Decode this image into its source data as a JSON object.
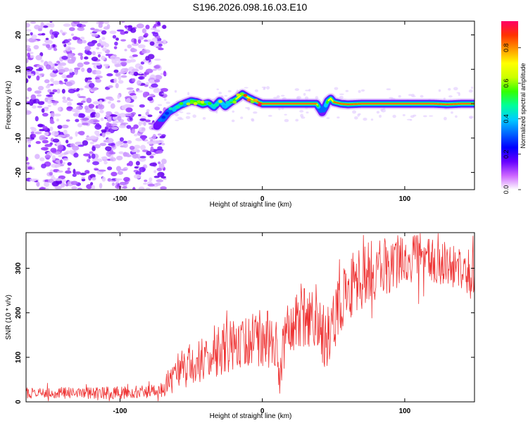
{
  "title": "S196.2026.098.16.03.E10",
  "chart_data": [
    {
      "type": "heatmap",
      "title": "S196.2026.098.16.03.E10",
      "xlabel": "Height of straight line (km)",
      "ylabel": "Frequency (Hz)",
      "xlim": [
        -166,
        149
      ],
      "ylim": [
        -25,
        24
      ],
      "xticks": [
        -100,
        0,
        100
      ],
      "yticks": [
        -20,
        -10,
        0,
        10,
        20
      ],
      "colorbar": {
        "label": "Normalized spectral amplitude",
        "range": [
          0.0,
          0.95
        ],
        "ticks": [
          0.0,
          0.2,
          0.4,
          0.6,
          0.8
        ],
        "ticklabels": [
          "0.0",
          "0.2",
          "0.4",
          "0.6",
          "0.8"
        ],
        "colors": [
          "#ffffff",
          "#cc66ff",
          "#6600ff",
          "#0000ff",
          "#0066ff",
          "#00ccff",
          "#00ff99",
          "#33ff00",
          "#ccff00",
          "#ffff00",
          "#ff9900",
          "#ff3300",
          "#ff0066"
        ]
      },
      "noise_region_x": [
        -166,
        -73
      ],
      "signal_track": {
        "x": [
          -74,
          -70,
          -66,
          -62,
          -58,
          -54,
          -50,
          -46,
          -42,
          -38,
          -34,
          -30,
          -26,
          -22,
          -18,
          -14,
          -10,
          -6,
          -2,
          0,
          10,
          20,
          30,
          38,
          40,
          42,
          44,
          46,
          48,
          50,
          55,
          60,
          70,
          80,
          90,
          100,
          110,
          120,
          130,
          140,
          149
        ],
        "f": [
          -6.5,
          -4.5,
          -2.5,
          -1.5,
          -0.5,
          0.2,
          0.8,
          0.5,
          -0.2,
          0.2,
          -1.0,
          0.8,
          -0.8,
          0.5,
          1.5,
          2.8,
          1.8,
          1.0,
          0.3,
          0.0,
          0.0,
          0.0,
          0.0,
          0.0,
          -1.2,
          -2.5,
          -1.0,
          0.8,
          1.5,
          0.5,
          0.0,
          -0.2,
          0.0,
          0.0,
          0.0,
          0.0,
          0.0,
          0.0,
          -0.2,
          0.0,
          0.0
        ],
        "amplitude": [
          0.3,
          0.35,
          0.4,
          0.45,
          0.5,
          0.55,
          0.6,
          0.62,
          0.65,
          0.55,
          0.5,
          0.6,
          0.45,
          0.6,
          0.75,
          0.8,
          0.8,
          0.85,
          0.9,
          0.92,
          0.92,
          0.92,
          0.9,
          0.88,
          0.4,
          0.3,
          0.4,
          0.7,
          0.8,
          0.85,
          0.88,
          0.9,
          0.92,
          0.85,
          0.9,
          0.9,
          0.92,
          0.88,
          0.85,
          0.9,
          0.88
        ]
      }
    },
    {
      "type": "line",
      "xlabel": "Height of straight line (km)",
      "ylabel": "SNR (10 * v/v)",
      "xlim": [
        -166,
        149
      ],
      "ylim": [
        0,
        380
      ],
      "xticks": [
        -100,
        0,
        100
      ],
      "yticks": [
        0,
        100,
        200,
        300
      ],
      "color": "#ee3333",
      "baseline": {
        "x": [
          -166,
          -100,
          -72,
          -60,
          -50,
          -40,
          -30,
          -20,
          -10,
          0,
          10,
          12,
          14,
          20,
          30,
          40,
          45,
          50,
          55,
          60,
          70,
          80,
          90,
          100,
          110,
          120,
          130,
          140,
          149
        ],
        "y": [
          20,
          20,
          25,
          60,
          85,
          95,
          115,
          130,
          135,
          145,
          140,
          40,
          120,
          170,
          190,
          200,
          110,
          190,
          220,
          250,
          280,
          300,
          305,
          320,
          330,
          315,
          310,
          300,
          290
        ]
      },
      "spread": {
        "x": [
          -166,
          -72,
          -60,
          -30,
          0,
          30,
          60,
          100,
          149
        ],
        "y": [
          12,
          15,
          45,
          55,
          65,
          70,
          75,
          60,
          50
        ]
      }
    }
  ]
}
